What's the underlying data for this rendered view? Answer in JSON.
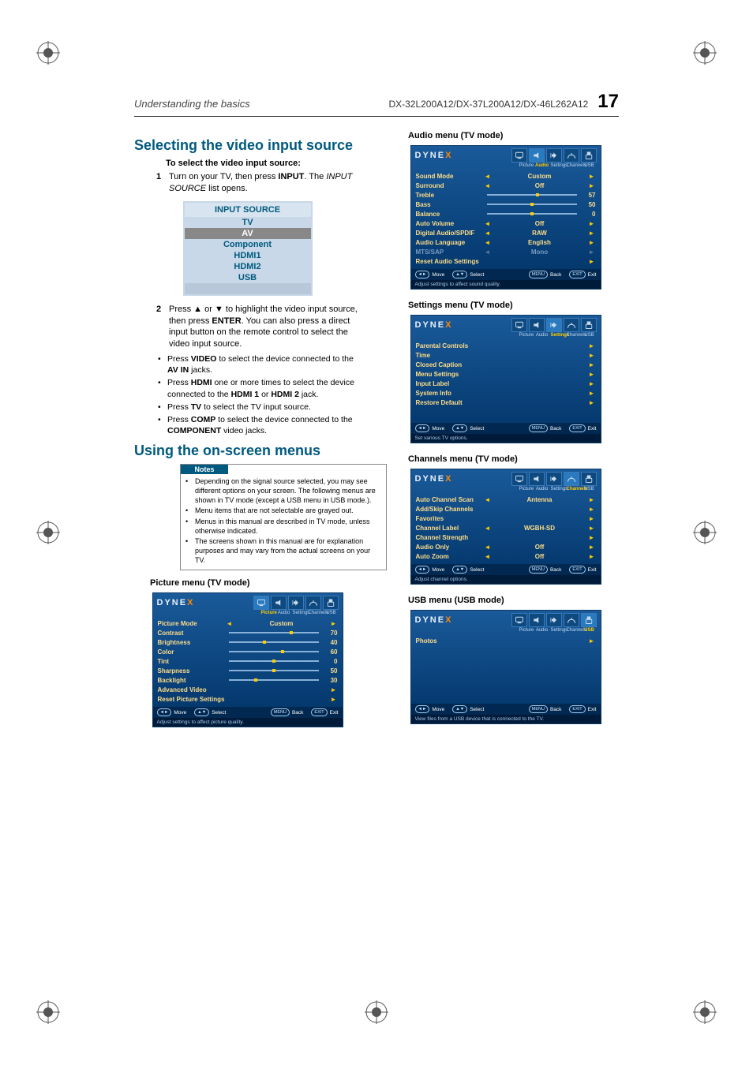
{
  "header": {
    "left": "Understanding the basics",
    "model": "DX-32L200A12/DX-37L200A12/DX-46L262A12",
    "page": "17"
  },
  "left": {
    "h2a": "Selecting the video input source",
    "sub1": "To select the video input source:",
    "step1_pre": "Turn on your TV, then press ",
    "step1_b": "INPUT",
    "step1_post1": ". The ",
    "step1_i": "INPUT SOURCE",
    "step1_post2": " list opens.",
    "inputSource": {
      "title": "INPUT SOURCE",
      "items": [
        "TV",
        "AV",
        "Component",
        "HDMI1",
        "HDMI2",
        "USB"
      ],
      "selected": 1
    },
    "step2_a": "Press ▲ or ▼ to highlight the video input source, then press ",
    "step2_b": "ENTER",
    "step2_c": ". You can also press a direct input button on the remote control to select the video input source.",
    "b1a": "Press ",
    "b1b": "VIDEO",
    "b1c": " to select the device connected to the ",
    "b1d": "AV IN",
    "b1e": " jacks.",
    "b2a": "Press ",
    "b2b": "HDMI",
    "b2c": " one or more times to select the device connected to the ",
    "b2d": "HDMI 1",
    "b2e": " or ",
    "b2f": "HDMI 2",
    "b2g": " jack.",
    "b3a": "Press ",
    "b3b": "TV",
    "b3c": " to select the TV input source.",
    "b4a": "Press ",
    "b4b": "COMP",
    "b4c": " to select the device connected to the ",
    "b4d": "COMPONENT",
    "b4e": " video jacks.",
    "h2b": "Using the on-screen menus",
    "notesTitle": "Notes",
    "note1": "Depending on the signal source selected, you may see different options on your screen. The following menus are shown in TV mode (except a USB menu in USB mode.).",
    "note2": "Menu items that are not selectable are grayed out.",
    "note3": "Menus in this manual are described in TV mode, unless otherwise indicated.",
    "note4": "The screens shown in this manual are for explanation purposes and may vary from the actual screens on your TV.",
    "pictureCaption": "Picture menu (TV mode)"
  },
  "right": {
    "audioCaption": "Audio menu (TV mode)",
    "settingsCaption": "Settings menu (TV mode)",
    "channelsCaption": "Channels menu (TV mode)",
    "usbCaption": "USB menu (USB mode)"
  },
  "osd": {
    "logo": "DYNE",
    "logoX": "X",
    "tabs": [
      "Picture",
      "Audio",
      "Settings",
      "Channels",
      "USB"
    ],
    "footer": {
      "move": "Move",
      "select": "Select",
      "backBtn": "MENU",
      "back": "Back",
      "exitBtn": "EXIT",
      "exit": "Exit"
    }
  },
  "pictureMenu": {
    "activeTab": 0,
    "hint": "Adjust settings to affect picture quality.",
    "rows": [
      {
        "label": "Picture Mode",
        "type": "sel",
        "value": "Custom"
      },
      {
        "label": "Contrast",
        "type": "slider",
        "pct": 70,
        "val": "70"
      },
      {
        "label": "Brightness",
        "type": "slider",
        "pct": 40,
        "val": "40"
      },
      {
        "label": "Color",
        "type": "slider",
        "pct": 60,
        "val": "60"
      },
      {
        "label": "Tint",
        "type": "slider",
        "pct": 50,
        "val": "0"
      },
      {
        "label": "Sharpness",
        "type": "slider",
        "pct": 50,
        "val": "50"
      },
      {
        "label": "Backlight",
        "type": "slider",
        "pct": 30,
        "val": "30"
      },
      {
        "label": "Advanced Video",
        "type": "nav"
      },
      {
        "label": "Reset Picture Settings",
        "type": "nav"
      }
    ]
  },
  "audioMenu": {
    "activeTab": 1,
    "hint": "Adjust settings to affect sound quality.",
    "rows": [
      {
        "label": "Sound Mode",
        "type": "sel",
        "value": "Custom"
      },
      {
        "label": "Surround",
        "type": "sel",
        "value": "Off"
      },
      {
        "label": "Treble",
        "type": "slider",
        "pct": 57,
        "val": "57"
      },
      {
        "label": "Bass",
        "type": "slider",
        "pct": 50,
        "val": "50"
      },
      {
        "label": "Balance",
        "type": "slider",
        "pct": 50,
        "val": "0"
      },
      {
        "label": "Auto Volume",
        "type": "sel",
        "value": "Off"
      },
      {
        "label": "Digital Audio/SPDIF",
        "type": "sel",
        "value": "RAW"
      },
      {
        "label": "Audio Language",
        "type": "sel",
        "value": "English"
      },
      {
        "label": "MTS/SAP",
        "type": "sel",
        "value": "Mono",
        "dim": true
      },
      {
        "label": "Reset Audio Settings",
        "type": "nav"
      }
    ]
  },
  "settingsMenu": {
    "activeTab": 2,
    "hint": "Set various TV options.",
    "rows": [
      {
        "label": "Parental Controls",
        "type": "nav"
      },
      {
        "label": "Time",
        "type": "nav"
      },
      {
        "label": "Closed Caption",
        "type": "nav"
      },
      {
        "label": "Menu Settings",
        "type": "nav"
      },
      {
        "label": "Input Label",
        "type": "nav"
      },
      {
        "label": "System Info",
        "type": "nav"
      },
      {
        "label": "Restore Default",
        "type": "nav"
      }
    ]
  },
  "channelsMenu": {
    "activeTab": 3,
    "hint": "Adjust channel options.",
    "rows": [
      {
        "label": "Auto Channel Scan",
        "type": "sel",
        "value": "Antenna"
      },
      {
        "label": "Add/Skip Channels",
        "type": "nav"
      },
      {
        "label": "Favorites",
        "type": "nav"
      },
      {
        "label": "Channel Label",
        "type": "sel",
        "value": "WGBH-SD"
      },
      {
        "label": "Channel Strength",
        "type": "nav"
      },
      {
        "label": "Audio Only",
        "type": "sel",
        "value": "Off"
      },
      {
        "label": "Auto Zoom",
        "type": "sel",
        "value": "Off"
      }
    ]
  },
  "usbMenu": {
    "activeTab": 4,
    "hint": "View files from a USB device that is connected to the TV.",
    "rows": [
      {
        "label": "Photos",
        "type": "nav"
      }
    ]
  },
  "colors": {
    "accent": "#005a7f",
    "osdBgTop": "#1a5a9a",
    "osdBgBottom": "#003366",
    "highlight": "#ffcc00",
    "menuText": "#ffdd88"
  }
}
